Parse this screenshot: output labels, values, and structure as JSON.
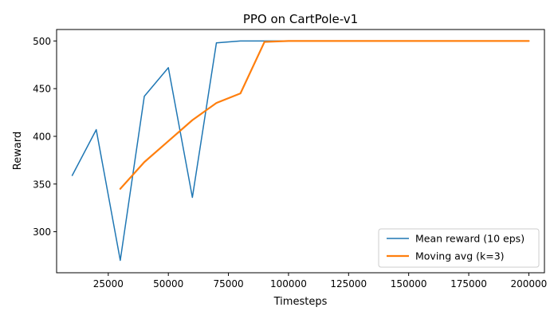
{
  "chart_data": {
    "type": "line",
    "title": "PPO on CartPole-v1",
    "xlabel": "Timesteps",
    "ylabel": "Reward",
    "xlim": [
      3500,
      206500
    ],
    "ylim": [
      257,
      512
    ],
    "xticks": [
      25000,
      50000,
      75000,
      100000,
      125000,
      150000,
      175000,
      200000
    ],
    "xtick_labels": [
      "25000",
      "50000",
      "75000",
      "100000",
      "125000",
      "150000",
      "175000",
      "200000"
    ],
    "yticks": [
      300,
      350,
      400,
      450,
      500
    ],
    "ytick_labels": [
      "300",
      "350",
      "400",
      "450",
      "500"
    ],
    "grid": false,
    "legend_position": "lower-right",
    "series": [
      {
        "name": "Mean reward (10 eps)",
        "color": "#1f77b4",
        "line_width": "thin",
        "x": [
          10000,
          20000,
          30000,
          40000,
          50000,
          60000,
          70000,
          80000,
          90000,
          100000,
          110000,
          120000,
          130000,
          140000,
          150000,
          160000,
          170000,
          180000,
          190000,
          200000
        ],
        "y": [
          359,
          407,
          270,
          442,
          472,
          336,
          498,
          500,
          500,
          500,
          500,
          500,
          500,
          500,
          500,
          500,
          500,
          500,
          500,
          500
        ]
      },
      {
        "name": "Moving avg (k=3)",
        "color": "#ff7f0e",
        "line_width": "thick",
        "x": [
          30000,
          40000,
          50000,
          60000,
          70000,
          80000,
          90000,
          100000,
          110000,
          120000,
          130000,
          140000,
          150000,
          160000,
          170000,
          180000,
          190000,
          200000
        ],
        "y": [
          345,
          373,
          395,
          417,
          435,
          445,
          499,
          500,
          500,
          500,
          500,
          500,
          500,
          500,
          500,
          500,
          500,
          500
        ]
      }
    ]
  }
}
